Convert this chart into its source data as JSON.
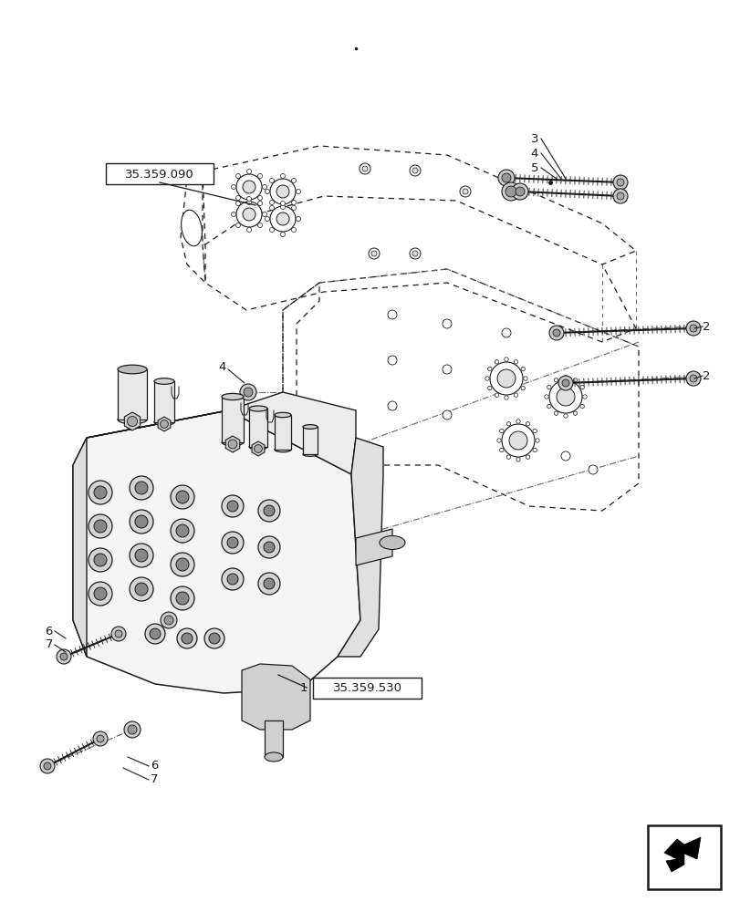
{
  "bg_color": "#ffffff",
  "line_color": "#1a1a1a",
  "dash_color": "#666666",
  "fig_width": 8.12,
  "fig_height": 10.0,
  "labels": {
    "ref_090": "35.359.090",
    "ref_530": "35.359.530",
    "num1": "1",
    "num2a": "2",
    "num2b": "2",
    "num3": "3",
    "num4a": "4",
    "num4b": "4",
    "num5": "5",
    "num6a": "6",
    "num6b": "6",
    "num7a": "7",
    "num7b": "7"
  },
  "font_size_label": 9.5,
  "font_size_ref": 9.5,
  "dot_small": 55,
  "small_dot_size": 3.5
}
